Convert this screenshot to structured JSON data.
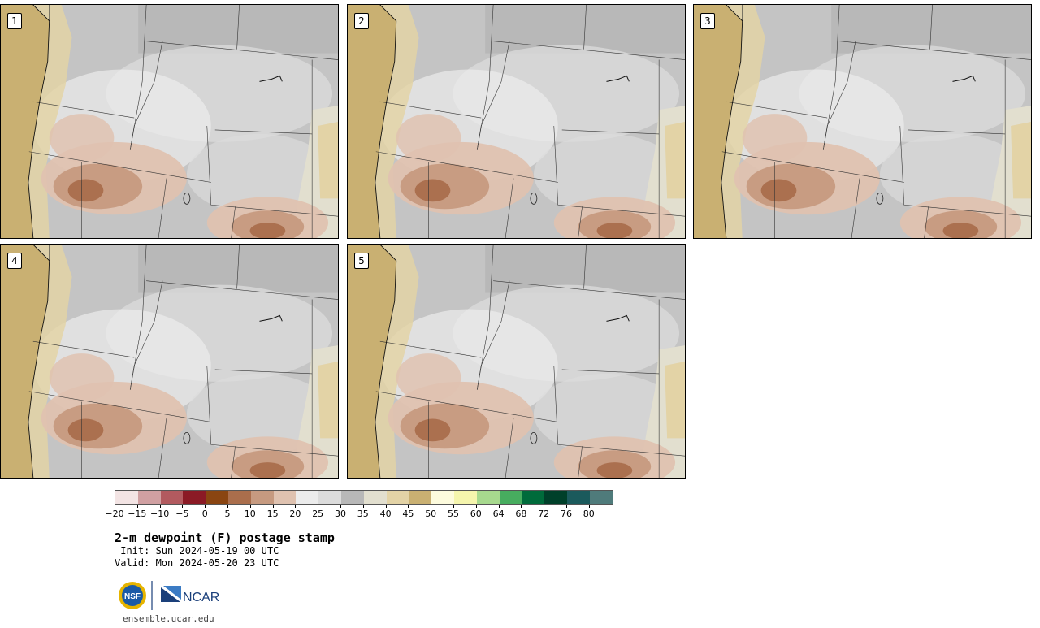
{
  "page": {
    "title": "2-m dewpoint (F) postage stamp",
    "init": " Init: Sun 2024-05-19 00 UTC",
    "valid": "Valid: Mon 2024-05-20 23 UTC",
    "footer_url": "ensemble.ucar.edu"
  },
  "panels": [
    {
      "label": "1"
    },
    {
      "label": "2"
    },
    {
      "label": "3"
    },
    {
      "label": "4"
    },
    {
      "label": "5"
    }
  ],
  "colorbar": {
    "colors": [
      "#f3e4e4",
      "#d0a0a2",
      "#b25a5f",
      "#8b1a25",
      "#8a4511",
      "#aa6e4c",
      "#c69a80",
      "#dfc2b0",
      "#ececec",
      "#dcdcdc",
      "#b8b8b8",
      "#e2dfcf",
      "#e3d3a6",
      "#c9b072",
      "#fdfbdd",
      "#f5f5ad",
      "#a7d98e",
      "#47ad5f",
      "#006b3b",
      "#00402a",
      "#1b5a5c",
      "#4f7b7b"
    ],
    "tick_labels": [
      "−20",
      "−15",
      "−10",
      "−5",
      "0",
      "5",
      "10",
      "15",
      "20",
      "25",
      "30",
      "35",
      "40",
      "45",
      "50",
      "55",
      "60",
      "64",
      "68",
      "72",
      "76",
      "80"
    ]
  },
  "logos": {
    "nsf_text": "NSF",
    "ncar_text": "NCAR"
  }
}
